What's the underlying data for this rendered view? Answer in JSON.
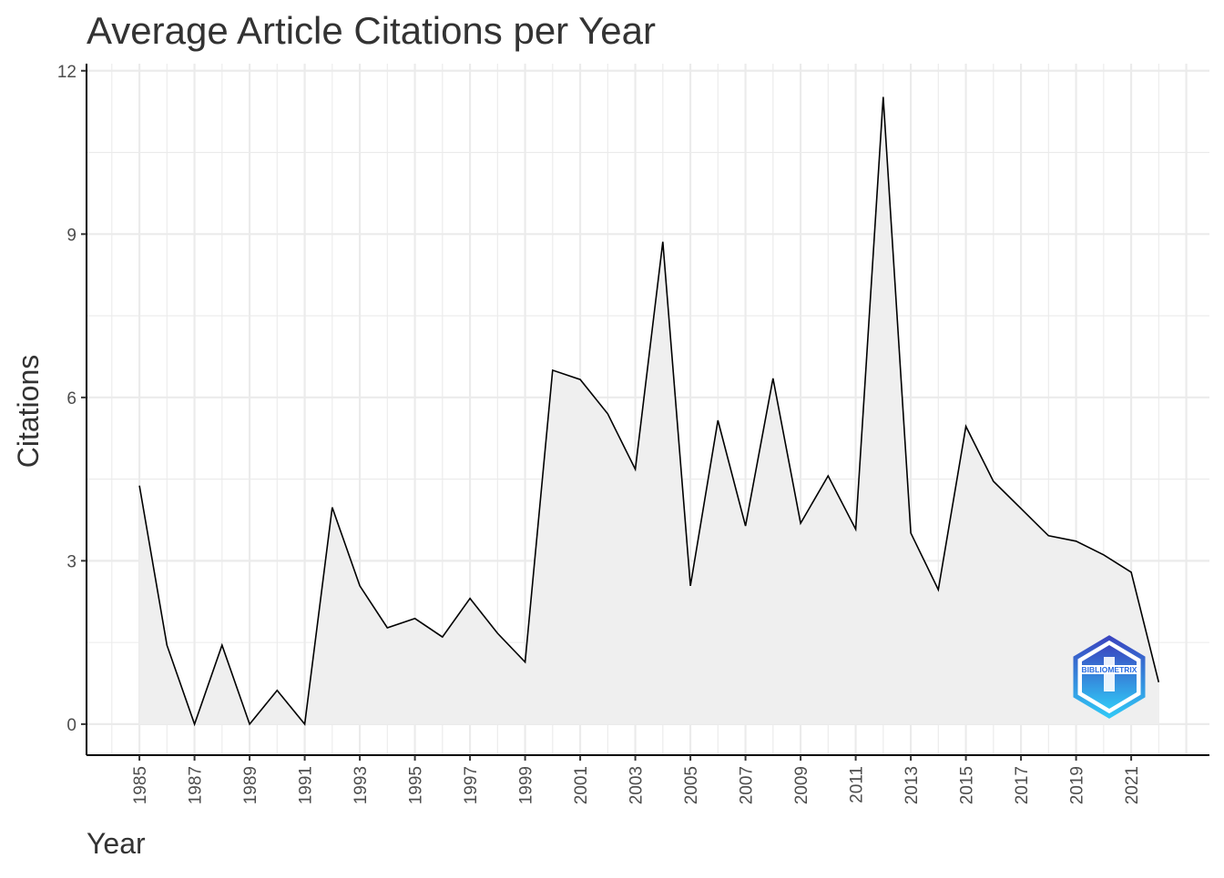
{
  "chart_data": {
    "type": "area",
    "title": "Average Article Citations per Year",
    "xlabel": "Year",
    "ylabel": "Citations",
    "x": [
      1985,
      1986,
      1987,
      1988,
      1989,
      1990,
      1991,
      1992,
      1993,
      1994,
      1995,
      1996,
      1997,
      1998,
      1999,
      2000,
      2001,
      2002,
      2003,
      2004,
      2005,
      2006,
      2007,
      2008,
      2009,
      2010,
      2011,
      2012,
      2013,
      2014,
      2015,
      2016,
      2017,
      2018,
      2019,
      2020,
      2021,
      2022
    ],
    "series": [
      {
        "name": "Citations",
        "values": [
          4.38,
          1.45,
          0,
          1.45,
          0,
          0.62,
          0,
          3.98,
          2.54,
          1.77,
          1.94,
          1.6,
          2.31,
          1.67,
          1.14,
          6.5,
          6.33,
          5.7,
          4.68,
          8.86,
          2.54,
          5.58,
          3.64,
          6.35,
          3.69,
          4.56,
          3.58,
          11.52,
          3.51,
          2.47,
          5.47,
          4.46,
          3.96,
          3.46,
          3.36,
          3.11,
          2.79,
          0.77
        ]
      }
    ],
    "x_ticks": [
      "1985",
      "1987",
      "1989",
      "1991",
      "1993",
      "1995",
      "1997",
      "1999",
      "2001",
      "2003",
      "2005",
      "2007",
      "2009",
      "2011",
      "2013",
      "2015",
      "2017",
      "2019",
      "2021"
    ],
    "y_ticks": [
      "0",
      "3",
      "6",
      "9",
      "12"
    ],
    "xlim": [
      1983.08,
      2023.84
    ],
    "ylim": [
      -0.57,
      12.13
    ],
    "grid": true,
    "line_color": "#000000",
    "fill_color": "#efefef",
    "watermark": "BIBLIOMETRIX"
  }
}
